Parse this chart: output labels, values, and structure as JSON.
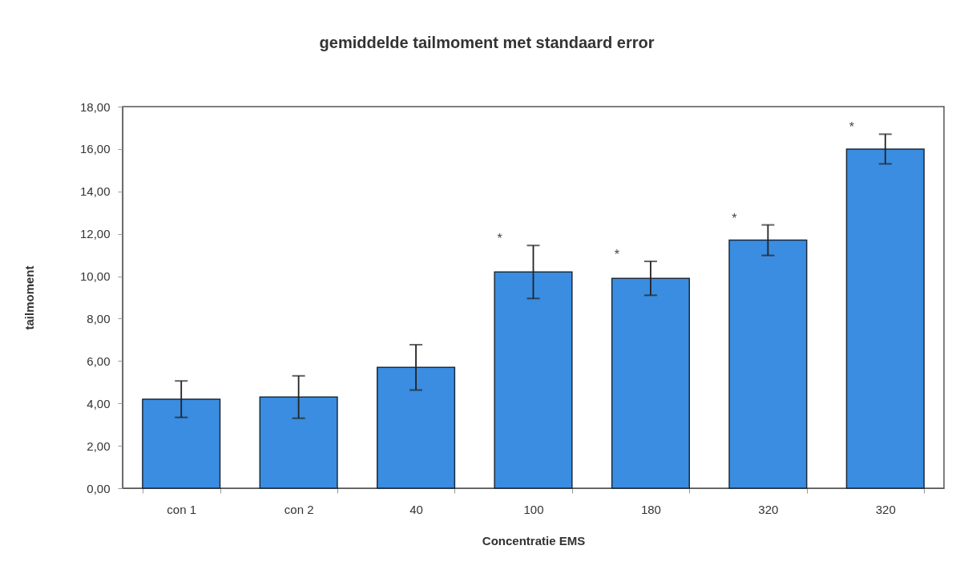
{
  "chart_data": {
    "type": "bar",
    "title": "gemiddelde tailmoment met standaard error",
    "xlabel": "Concentratie EMS",
    "ylabel": "tailmoment",
    "categories": [
      "con 1",
      "con 2",
      "40",
      "100",
      "180",
      "320",
      "320"
    ],
    "values": [
      4.2,
      4.3,
      5.7,
      10.2,
      9.9,
      11.7,
      16.0
    ],
    "errors": [
      0.86,
      1.0,
      1.07,
      1.25,
      0.8,
      0.72,
      0.7
    ],
    "color": "#3a8de0",
    "value_labels": [
      null,
      null,
      null,
      "*",
      "*",
      "*",
      "*"
    ],
    "ylim": [
      0,
      18
    ],
    "yticks": [
      {
        "value": 0,
        "label": "0,00"
      },
      {
        "value": 2,
        "label": "2,00"
      },
      {
        "value": 4,
        "label": "4,00"
      },
      {
        "value": 6,
        "label": "6,00"
      },
      {
        "value": 8,
        "label": "8,00"
      },
      {
        "value": 10,
        "label": "10,00"
      },
      {
        "value": 12,
        "label": "12,00"
      },
      {
        "value": 14,
        "label": "14,00"
      },
      {
        "value": 16,
        "label": "16,00"
      },
      {
        "value": 18,
        "label": "18,00"
      }
    ]
  }
}
